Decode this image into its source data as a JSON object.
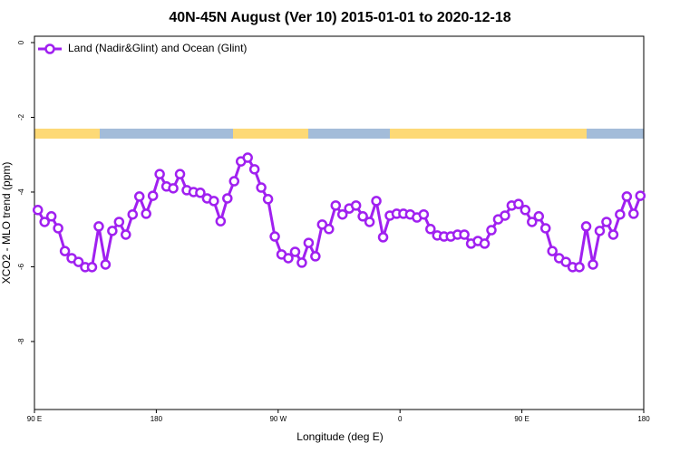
{
  "chart_data": {
    "type": "line",
    "title": "40N-45N August (Ver 10)   2015-01-01 to 2020-12-18",
    "xlabel": "Longitude (deg E)",
    "ylabel": "XCO2 - MLO trend (ppm)",
    "x": [
      92.5,
      97.5,
      102.5,
      107.5,
      112.5,
      117.5,
      122.5,
      127.5,
      132.5,
      137.5,
      142.5,
      147.5,
      152.5,
      157.5,
      162.5,
      167.5,
      172.5,
      177.5,
      182.5,
      187.5,
      192.5,
      197.5,
      202.5,
      207.5,
      212.5,
      217.5,
      222.5,
      227.5,
      232.5,
      237.5,
      242.5,
      247.5,
      252.5,
      257.5,
      262.5,
      267.5,
      272.5,
      277.5,
      282.5,
      287.5,
      292.5,
      297.5,
      302.5,
      307.5,
      312.5,
      317.5,
      322.5,
      327.5,
      332.5,
      337.5,
      342.5,
      347.5,
      352.5,
      357.5,
      362.5,
      367.5,
      372.5,
      377.5,
      382.5,
      387.5,
      392.5,
      397.5,
      402.5,
      407.5,
      412.5,
      417.5,
      422.5,
      427.5,
      432.5,
      437.5,
      442.5,
      447.5,
      452.5,
      457.5,
      462.5,
      467.5,
      472.5,
      477.5,
      482.5,
      487.5,
      492.5,
      497.5,
      502.5,
      507.5,
      512.5,
      517.5,
      522.5,
      527.5,
      532.5,
      537.5
    ],
    "series": [
      {
        "name": "Land (Nadir&Glint) and Ocean (Glint)",
        "color": "#a020f0",
        "values": [
          -4.48,
          -4.8,
          -4.65,
          -4.97,
          -5.58,
          -5.77,
          -5.87,
          -6.01,
          -6.01,
          -4.92,
          -5.94,
          -5.04,
          -4.8,
          -5.14,
          -4.6,
          -4.12,
          -4.58,
          -4.1,
          -3.52,
          -3.85,
          -3.9,
          -3.52,
          -3.95,
          -4.0,
          -4.02,
          -4.17,
          -4.24,
          -4.78,
          -4.17,
          -3.71,
          -3.18,
          -3.08,
          -3.39,
          -3.88,
          -4.19,
          -5.19,
          -5.67,
          -5.77,
          -5.6,
          -5.89,
          -5.36,
          -5.72,
          -4.87,
          -4.99,
          -4.36,
          -4.6,
          -4.44,
          -4.36,
          -4.65,
          -4.8,
          -4.24,
          -5.21,
          -4.63,
          -4.58,
          -4.58,
          -4.6,
          -4.68,
          -4.6,
          -4.99,
          -5.16,
          -5.19,
          -5.19,
          -5.14,
          -5.14,
          -5.38,
          -5.31,
          -5.38,
          -5.02,
          -4.73,
          -4.63,
          -4.36,
          -4.32,
          -4.48,
          -4.8,
          -4.65,
          -4.97,
          -5.58,
          -5.77,
          -5.87,
          -6.01,
          -6.01,
          -4.92,
          -5.94,
          -5.04,
          -4.8,
          -5.14,
          -4.6,
          -4.12,
          -4.58,
          -4.1
        ]
      }
    ],
    "xlim": [
      90,
      540
    ],
    "xticks": [
      {
        "value": 90,
        "label": "90 E"
      },
      180,
      {
        "value": 270,
        "label": "90 W"
      },
      {
        "value": 360,
        "label": "0"
      },
      {
        "value": 450,
        "label": "90 E"
      },
      {
        "value": 540,
        "label": "180"
      }
    ],
    "ylim": [
      -9.82,
      0.17
    ],
    "yticks": [
      0,
      -2,
      -4,
      -6,
      -8
    ],
    "legend": "top-left"
  }
}
